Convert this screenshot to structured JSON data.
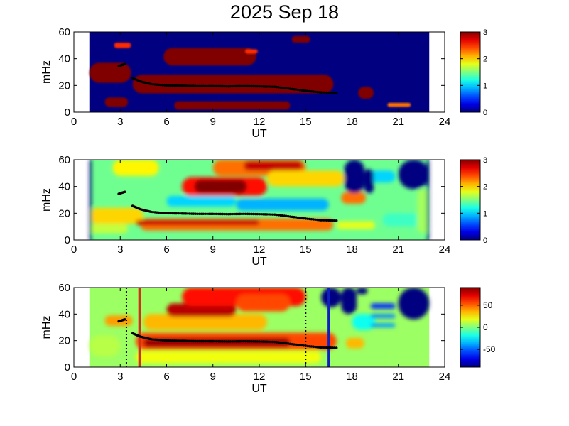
{
  "figure": {
    "title": "2025 Sep 18"
  },
  "chart_data": [
    {
      "type": "heatmap",
      "panel": "top",
      "xlabel": "UT",
      "ylabel": "mHz",
      "xlim": [
        0,
        24
      ],
      "ylim": [
        0,
        60
      ],
      "xticks": [
        0,
        3,
        6,
        9,
        12,
        15,
        18,
        21,
        24
      ],
      "yticks": [
        0,
        20,
        40,
        60
      ],
      "data_x_range": [
        1,
        23
      ],
      "colorbar": {
        "ticks": [
          0,
          1,
          2,
          3
        ],
        "range": [
          0,
          3
        ],
        "colormap": "jet"
      },
      "background_value": 0,
      "regions": [
        {
          "x": [
            1.0,
            3.7
          ],
          "y": [
            22,
            37
          ],
          "value": 3
        },
        {
          "x": [
            3.8,
            16.8
          ],
          "y": [
            14,
            28
          ],
          "value": 3
        },
        {
          "x": [
            5.8,
            11.8
          ],
          "y": [
            35,
            48
          ],
          "value": 3
        },
        {
          "x": [
            2.0,
            3.5
          ],
          "y": [
            4,
            11
          ],
          "value": 3
        },
        {
          "x": [
            6.5,
            14.0
          ],
          "y": [
            2,
            8
          ],
          "value": 3
        },
        {
          "x": [
            18.4,
            19.4
          ],
          "y": [
            10,
            19
          ],
          "value": 3
        },
        {
          "x": [
            14.1,
            15.3
          ],
          "y": [
            52,
            57
          ],
          "value": 3
        },
        {
          "x": [
            2.6,
            3.7
          ],
          "y": [
            48,
            52
          ],
          "value": 2.5
        },
        {
          "x": [
            11.1,
            11.9
          ],
          "y": [
            44,
            47
          ],
          "value": 2.5
        },
        {
          "x": [
            20.3,
            21.8
          ],
          "y": [
            4,
            7
          ],
          "value": 2.3
        }
      ],
      "ridge_line": {
        "x": [
          2.9,
          3.3,
          3.8,
          4.3,
          5.0,
          6.0,
          7.0,
          8.0,
          9.0,
          10.0,
          11.0,
          12.0,
          13.0,
          14.0,
          15.0,
          16.0,
          17.0
        ],
        "y": [
          34.5,
          36,
          25.5,
          23,
          21,
          20,
          19.8,
          19.5,
          19.5,
          19.3,
          19.5,
          19.3,
          19,
          17.5,
          16,
          14.8,
          14.5
        ]
      }
    },
    {
      "type": "heatmap",
      "panel": "middle",
      "xlabel": "UT",
      "ylabel": "mHz",
      "xlim": [
        0,
        24
      ],
      "ylim": [
        0,
        60
      ],
      "xticks": [
        0,
        3,
        6,
        9,
        12,
        15,
        18,
        21,
        24
      ],
      "yticks": [
        0,
        20,
        40,
        60
      ],
      "data_x_range": [
        1,
        23
      ],
      "colorbar": {
        "ticks": [
          0,
          1,
          2,
          3
        ],
        "range": [
          0,
          3
        ],
        "colormap": "jet"
      },
      "background_value": 1.45,
      "regions": [
        {
          "x": [
            1.0,
            4.5
          ],
          "y": [
            12,
            24
          ],
          "value": 2.0
        },
        {
          "x": [
            4.3,
            16.8
          ],
          "y": [
            7,
            16
          ],
          "value": 2.3
        },
        {
          "x": [
            4.0,
            12.0
          ],
          "y": [
            11,
            15
          ],
          "value": 2.8
        },
        {
          "x": [
            10.5,
            16.5
          ],
          "y": [
            22,
            31
          ],
          "value": 0.9
        },
        {
          "x": [
            6.0,
            10.5
          ],
          "y": [
            25,
            33
          ],
          "value": 1.0
        },
        {
          "x": [
            7.0,
            12.5
          ],
          "y": [
            33,
            47
          ],
          "value": 2.6
        },
        {
          "x": [
            7.8,
            11.2
          ],
          "y": [
            35,
            45
          ],
          "value": 3.0
        },
        {
          "x": [
            9.0,
            15.0
          ],
          "y": [
            48,
            60
          ],
          "value": 2.3
        },
        {
          "x": [
            11.0,
            14.8
          ],
          "y": [
            52,
            59
          ],
          "value": 2.8
        },
        {
          "x": [
            2.5,
            5.5
          ],
          "y": [
            48,
            60
          ],
          "value": 1.9
        },
        {
          "x": [
            12.5,
            17.5
          ],
          "y": [
            40,
            52
          ],
          "value": 2.0
        },
        {
          "x": [
            17.3,
            18.9
          ],
          "y": [
            27,
            36
          ],
          "value": 2.3
        },
        {
          "x": [
            19.0,
            20.8
          ],
          "y": [
            43,
            52
          ],
          "value": 1.0
        },
        {
          "x": [
            1.0,
            3.5
          ],
          "y": [
            5,
            12
          ],
          "value": 1.7
        },
        {
          "x": [
            17.0,
            19.5
          ],
          "y": [
            8,
            14
          ],
          "value": 1.8
        },
        {
          "x": [
            20.0,
            23.0
          ],
          "y": [
            10,
            20
          ],
          "value": 1.3
        },
        {
          "x": [
            17.5,
            18.8
          ],
          "y": [
            35,
            60
          ],
          "value": 0
        },
        {
          "x": [
            18.8,
            19.4
          ],
          "y": [
            35,
            53
          ],
          "value": 0
        },
        {
          "x": [
            21.0,
            23.0
          ],
          "y": [
            38,
            60
          ],
          "value": 0
        },
        {
          "x": [
            22.2,
            23.0
          ],
          "y": [
            5,
            38
          ],
          "value": 1.6
        },
        {
          "x": [
            1.0,
            1.15
          ],
          "y": [
            0,
            60
          ],
          "value": 0
        },
        {
          "x": [
            22.85,
            23.0
          ],
          "y": [
            0,
            60
          ],
          "value": 0
        }
      ],
      "ridge_line": {
        "x": [
          2.9,
          3.3,
          3.8,
          4.3,
          5.0,
          6.0,
          7.0,
          8.0,
          9.0,
          10.0,
          11.0,
          12.0,
          13.0,
          14.0,
          15.0,
          16.0,
          17.0
        ],
        "y": [
          34.5,
          36,
          25.5,
          23,
          21,
          20,
          19.8,
          19.5,
          19.5,
          19.3,
          19.5,
          19.3,
          19,
          17.5,
          16,
          14.8,
          14.5
        ]
      }
    },
    {
      "type": "heatmap",
      "panel": "bottom",
      "xlabel": "UT",
      "ylabel": "mHz",
      "xlim": [
        0,
        24
      ],
      "ylim": [
        0,
        60
      ],
      "xticks": [
        0,
        3,
        6,
        9,
        12,
        15,
        18,
        21,
        24
      ],
      "yticks": [
        0,
        20,
        40,
        60
      ],
      "data_x_range": [
        1,
        23
      ],
      "colorbar": {
        "ticks": [
          50,
          0,
          -50
        ],
        "range": [
          -90,
          90
        ],
        "colormap": "jet"
      },
      "background_value": 5,
      "regions": [
        {
          "x": [
            4.0,
            17.0
          ],
          "y": [
            13,
            26
          ],
          "value": 55
        },
        {
          "x": [
            4.5,
            14.0
          ],
          "y": [
            15,
            22
          ],
          "value": 85
        },
        {
          "x": [
            4.5,
            12.5
          ],
          "y": [
            28,
            40
          ],
          "value": 35
        },
        {
          "x": [
            6.0,
            10.5
          ],
          "y": [
            38,
            48
          ],
          "value": 80
        },
        {
          "x": [
            7.0,
            15.0
          ],
          "y": [
            46,
            60
          ],
          "value": 65
        },
        {
          "x": [
            10.5,
            14.0
          ],
          "y": [
            42,
            55
          ],
          "value": 55
        },
        {
          "x": [
            2.0,
            3.8
          ],
          "y": [
            31,
            39
          ],
          "value": 40
        },
        {
          "x": [
            1.0,
            3.0
          ],
          "y": [
            8,
            24
          ],
          "value": 10
        },
        {
          "x": [
            4.0,
            16.0
          ],
          "y": [
            3,
            12
          ],
          "value": 20
        },
        {
          "x": [
            17.6,
            18.8
          ],
          "y": [
            14,
            22
          ],
          "value": 35
        },
        {
          "x": [
            18.0,
            19.5
          ],
          "y": [
            28,
            40
          ],
          "value": -20
        },
        {
          "x": [
            19.2,
            20.8
          ],
          "y": [
            44,
            48
          ],
          "value": -60
        },
        {
          "x": [
            19.2,
            20.8
          ],
          "y": [
            37,
            40
          ],
          "value": -45
        },
        {
          "x": [
            19.2,
            20.8
          ],
          "y": [
            30,
            33
          ],
          "value": -40
        },
        {
          "x": [
            16.0,
            17.3
          ],
          "y": [
            45,
            60
          ],
          "value": -90
        },
        {
          "x": [
            17.3,
            18.3
          ],
          "y": [
            40,
            60
          ],
          "value": -90
        },
        {
          "x": [
            18.3,
            19.0
          ],
          "y": [
            55,
            60
          ],
          "value": -90
        },
        {
          "x": [
            21.0,
            23.0
          ],
          "y": [
            36,
            60
          ],
          "value": -90
        }
      ],
      "vertical_lines": [
        {
          "x": 3.4,
          "style": "dotted",
          "color": "#000000"
        },
        {
          "x": 4.25,
          "style": "solid",
          "color": "#d03020"
        },
        {
          "x": 15.0,
          "style": "dotted",
          "color": "#000000"
        },
        {
          "x": 16.5,
          "style": "solid",
          "color": "#1020c0"
        }
      ],
      "ridge_line": {
        "x": [
          2.9,
          3.3,
          3.8,
          4.3,
          5.0,
          6.0,
          7.0,
          8.0,
          9.0,
          10.0,
          11.0,
          12.0,
          13.0,
          14.0,
          15.0,
          16.0,
          17.0
        ],
        "y": [
          34.5,
          36,
          25.5,
          23,
          21,
          20,
          19.8,
          19.5,
          19.5,
          19.3,
          19.5,
          19.3,
          19,
          17.5,
          16,
          14.8,
          14.5
        ]
      }
    }
  ]
}
